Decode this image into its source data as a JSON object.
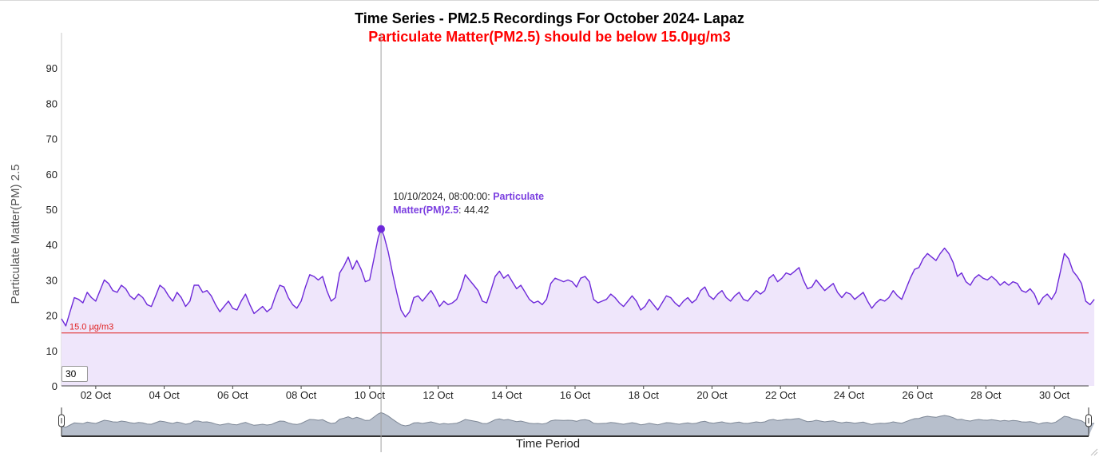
{
  "chart_data": {
    "type": "area",
    "title": "Time Series - PM2.5 Recordings For October 2024- Lapaz",
    "subtitle": "Particulate Matter(PM2.5) should be below 15.0µg/m3",
    "xlabel": "Time Period",
    "ylabel": "Particulate Matter(PM) 2.5",
    "series_name": "Particulate Matter(PM)2.5",
    "x_range": [
      "2024-10-01",
      "2024-10-31"
    ],
    "ylim": [
      0,
      100
    ],
    "yticks": [
      0,
      10,
      20,
      30,
      40,
      50,
      60,
      70,
      80,
      90
    ],
    "xticks": [
      {
        "date": "2024-10-02",
        "label": "02 Oct"
      },
      {
        "date": "2024-10-04",
        "label": "04 Oct"
      },
      {
        "date": "2024-10-06",
        "label": "06 Oct"
      },
      {
        "date": "2024-10-08",
        "label": "08 Oct"
      },
      {
        "date": "2024-10-10",
        "label": "10 Oct"
      },
      {
        "date": "2024-10-12",
        "label": "12 Oct"
      },
      {
        "date": "2024-10-14",
        "label": "14 Oct"
      },
      {
        "date": "2024-10-16",
        "label": "16 Oct"
      },
      {
        "date": "2024-10-18",
        "label": "18 Oct"
      },
      {
        "date": "2024-10-20",
        "label": "20 Oct"
      },
      {
        "date": "2024-10-22",
        "label": "22 Oct"
      },
      {
        "date": "2024-10-24",
        "label": "24 Oct"
      },
      {
        "date": "2024-10-26",
        "label": "26 Oct"
      },
      {
        "date": "2024-10-28",
        "label": "28 Oct"
      },
      {
        "date": "2024-10-30",
        "label": "30 Oct"
      }
    ],
    "threshold": {
      "value": 15.0,
      "label": "15.0 µg/m3",
      "color": "#e02020"
    },
    "line_color": "#6d28d9",
    "fill_color": "#efe6fb",
    "highlight": {
      "x": "2024-10-10 08:00",
      "y": 44.42,
      "timestamp": "10/10/2024, 08:00:00",
      "series_name": "Particulate Matter(PM)2.5",
      "value_text": "44.42"
    },
    "roller_value": "30",
    "points": [
      [
        "2024-10-01 00:00",
        19
      ],
      [
        "2024-10-01 03:00",
        17
      ],
      [
        "2024-10-01 06:00",
        21
      ],
      [
        "2024-10-01 09:00",
        25
      ],
      [
        "2024-10-01 12:00",
        24.5
      ],
      [
        "2024-10-01 15:00",
        23.5
      ],
      [
        "2024-10-01 18:00",
        26.5
      ],
      [
        "2024-10-01 21:00",
        25
      ],
      [
        "2024-10-02 00:00",
        24
      ],
      [
        "2024-10-02 03:00",
        27
      ],
      [
        "2024-10-02 06:00",
        30
      ],
      [
        "2024-10-02 09:00",
        29
      ],
      [
        "2024-10-02 12:00",
        27
      ],
      [
        "2024-10-02 15:00",
        26.5
      ],
      [
        "2024-10-02 18:00",
        28.5
      ],
      [
        "2024-10-02 21:00",
        27.5
      ],
      [
        "2024-10-03 00:00",
        25.5
      ],
      [
        "2024-10-03 03:00",
        24.5
      ],
      [
        "2024-10-03 06:00",
        26
      ],
      [
        "2024-10-03 09:00",
        25
      ],
      [
        "2024-10-03 12:00",
        23
      ],
      [
        "2024-10-03 15:00",
        22.5
      ],
      [
        "2024-10-03 18:00",
        25.5
      ],
      [
        "2024-10-03 21:00",
        28.5
      ],
      [
        "2024-10-04 00:00",
        27.5
      ],
      [
        "2024-10-04 03:00",
        25.5
      ],
      [
        "2024-10-04 06:00",
        24
      ],
      [
        "2024-10-04 09:00",
        26.5
      ],
      [
        "2024-10-04 12:00",
        25
      ],
      [
        "2024-10-04 15:00",
        22.5
      ],
      [
        "2024-10-04 18:00",
        24
      ],
      [
        "2024-10-04 21:00",
        28.5
      ],
      [
        "2024-10-05 00:00",
        28.5
      ],
      [
        "2024-10-05 03:00",
        26.5
      ],
      [
        "2024-10-05 06:00",
        27
      ],
      [
        "2024-10-05 09:00",
        25.5
      ],
      [
        "2024-10-05 12:00",
        23
      ],
      [
        "2024-10-05 15:00",
        21
      ],
      [
        "2024-10-05 18:00",
        22.5
      ],
      [
        "2024-10-05 21:00",
        24
      ],
      [
        "2024-10-06 00:00",
        22
      ],
      [
        "2024-10-06 03:00",
        21.5
      ],
      [
        "2024-10-06 06:00",
        24
      ],
      [
        "2024-10-06 09:00",
        26
      ],
      [
        "2024-10-06 12:00",
        23
      ],
      [
        "2024-10-06 15:00",
        20.5
      ],
      [
        "2024-10-06 18:00",
        21.5
      ],
      [
        "2024-10-06 21:00",
        22.5
      ],
      [
        "2024-10-07 00:00",
        21
      ],
      [
        "2024-10-07 03:00",
        22
      ],
      [
        "2024-10-07 06:00",
        25.5
      ],
      [
        "2024-10-07 09:00",
        28.5
      ],
      [
        "2024-10-07 12:00",
        28
      ],
      [
        "2024-10-07 15:00",
        25
      ],
      [
        "2024-10-07 18:00",
        23
      ],
      [
        "2024-10-07 21:00",
        22
      ],
      [
        "2024-10-08 00:00",
        24
      ],
      [
        "2024-10-08 03:00",
        28
      ],
      [
        "2024-10-08 06:00",
        31.5
      ],
      [
        "2024-10-08 09:00",
        31
      ],
      [
        "2024-10-08 12:00",
        30
      ],
      [
        "2024-10-08 15:00",
        31
      ],
      [
        "2024-10-08 18:00",
        27
      ],
      [
        "2024-10-08 21:00",
        24
      ],
      [
        "2024-10-09 00:00",
        25
      ],
      [
        "2024-10-09 03:00",
        32
      ],
      [
        "2024-10-09 06:00",
        34
      ],
      [
        "2024-10-09 09:00",
        36.5
      ],
      [
        "2024-10-09 12:00",
        33
      ],
      [
        "2024-10-09 15:00",
        35.5
      ],
      [
        "2024-10-09 18:00",
        33
      ],
      [
        "2024-10-09 21:00",
        29.5
      ],
      [
        "2024-10-10 00:00",
        30
      ],
      [
        "2024-10-10 03:00",
        36
      ],
      [
        "2024-10-10 06:00",
        42
      ],
      [
        "2024-10-10 08:00",
        44.42
      ],
      [
        "2024-10-10 10:00",
        42.5
      ],
      [
        "2024-10-10 13:00",
        38
      ],
      [
        "2024-10-10 16:00",
        32
      ],
      [
        "2024-10-10 19:00",
        26.5
      ],
      [
        "2024-10-10 22:00",
        21.5
      ],
      [
        "2024-10-11 01:00",
        19.5
      ],
      [
        "2024-10-11 04:00",
        21
      ],
      [
        "2024-10-11 07:00",
        25
      ],
      [
        "2024-10-11 10:00",
        25.5
      ],
      [
        "2024-10-11 13:00",
        24
      ],
      [
        "2024-10-11 16:00",
        25.5
      ],
      [
        "2024-10-11 19:00",
        27
      ],
      [
        "2024-10-11 22:00",
        25
      ],
      [
        "2024-10-12 01:00",
        22.5
      ],
      [
        "2024-10-12 04:00",
        24
      ],
      [
        "2024-10-12 07:00",
        23
      ],
      [
        "2024-10-12 10:00",
        23.5
      ],
      [
        "2024-10-12 13:00",
        24.5
      ],
      [
        "2024-10-12 16:00",
        27.5
      ],
      [
        "2024-10-12 19:00",
        31.5
      ],
      [
        "2024-10-12 22:00",
        30
      ],
      [
        "2024-10-13 01:00",
        28.5
      ],
      [
        "2024-10-13 04:00",
        27
      ],
      [
        "2024-10-13 07:00",
        24
      ],
      [
        "2024-10-13 10:00",
        23.5
      ],
      [
        "2024-10-13 13:00",
        27
      ],
      [
        "2024-10-13 16:00",
        31
      ],
      [
        "2024-10-13 19:00",
        32.5
      ],
      [
        "2024-10-13 22:00",
        30.5
      ],
      [
        "2024-10-14 01:00",
        31.5
      ],
      [
        "2024-10-14 04:00",
        29.5
      ],
      [
        "2024-10-14 07:00",
        27.5
      ],
      [
        "2024-10-14 10:00",
        28.5
      ],
      [
        "2024-10-14 13:00",
        26.5
      ],
      [
        "2024-10-14 16:00",
        24.5
      ],
      [
        "2024-10-14 19:00",
        23.5
      ],
      [
        "2024-10-14 22:00",
        24
      ],
      [
        "2024-10-15 01:00",
        23
      ],
      [
        "2024-10-15 04:00",
        24.5
      ],
      [
        "2024-10-15 07:00",
        29
      ],
      [
        "2024-10-15 10:00",
        30.5
      ],
      [
        "2024-10-15 13:00",
        30
      ],
      [
        "2024-10-15 16:00",
        29.5
      ],
      [
        "2024-10-15 19:00",
        30
      ],
      [
        "2024-10-15 22:00",
        29.5
      ],
      [
        "2024-10-16 01:00",
        28
      ],
      [
        "2024-10-16 04:00",
        30.5
      ],
      [
        "2024-10-16 07:00",
        31
      ],
      [
        "2024-10-16 10:00",
        29.5
      ],
      [
        "2024-10-16 13:00",
        24.5
      ],
      [
        "2024-10-16 16:00",
        23.5
      ],
      [
        "2024-10-16 19:00",
        24
      ],
      [
        "2024-10-16 22:00",
        24.5
      ],
      [
        "2024-10-17 01:00",
        26
      ],
      [
        "2024-10-17 04:00",
        25
      ],
      [
        "2024-10-17 07:00",
        23.5
      ],
      [
        "2024-10-17 10:00",
        22.5
      ],
      [
        "2024-10-17 13:00",
        24
      ],
      [
        "2024-10-17 16:00",
        25.5
      ],
      [
        "2024-10-17 19:00",
        24
      ],
      [
        "2024-10-17 22:00",
        21.5
      ],
      [
        "2024-10-18 01:00",
        22.5
      ],
      [
        "2024-10-18 04:00",
        24.5
      ],
      [
        "2024-10-18 07:00",
        23
      ],
      [
        "2024-10-18 10:00",
        21.5
      ],
      [
        "2024-10-18 13:00",
        23.5
      ],
      [
        "2024-10-18 16:00",
        25.5
      ],
      [
        "2024-10-18 19:00",
        25
      ],
      [
        "2024-10-18 22:00",
        23.5
      ],
      [
        "2024-10-19 01:00",
        22.5
      ],
      [
        "2024-10-19 04:00",
        24
      ],
      [
        "2024-10-19 07:00",
        25
      ],
      [
        "2024-10-19 10:00",
        23.5
      ],
      [
        "2024-10-19 13:00",
        24.5
      ],
      [
        "2024-10-19 16:00",
        27
      ],
      [
        "2024-10-19 19:00",
        28
      ],
      [
        "2024-10-19 22:00",
        25.5
      ],
      [
        "2024-10-20 01:00",
        24.5
      ],
      [
        "2024-10-20 04:00",
        26
      ],
      [
        "2024-10-20 07:00",
        27
      ],
      [
        "2024-10-20 10:00",
        25
      ],
      [
        "2024-10-20 13:00",
        24
      ],
      [
        "2024-10-20 16:00",
        25.5
      ],
      [
        "2024-10-20 19:00",
        26.5
      ],
      [
        "2024-10-20 22:00",
        24.5
      ],
      [
        "2024-10-21 01:00",
        24
      ],
      [
        "2024-10-21 04:00",
        25.5
      ],
      [
        "2024-10-21 07:00",
        27
      ],
      [
        "2024-10-21 10:00",
        26
      ],
      [
        "2024-10-21 13:00",
        27
      ],
      [
        "2024-10-21 16:00",
        30.5
      ],
      [
        "2024-10-21 19:00",
        31.5
      ],
      [
        "2024-10-21 22:00",
        29.5
      ],
      [
        "2024-10-22 01:00",
        30.5
      ],
      [
        "2024-10-22 04:00",
        32
      ],
      [
        "2024-10-22 07:00",
        31.5
      ],
      [
        "2024-10-22 10:00",
        32.5
      ],
      [
        "2024-10-22 13:00",
        33.5
      ],
      [
        "2024-10-22 16:00",
        30
      ],
      [
        "2024-10-22 19:00",
        27.5
      ],
      [
        "2024-10-22 22:00",
        28
      ],
      [
        "2024-10-23 01:00",
        30
      ],
      [
        "2024-10-23 04:00",
        28.5
      ],
      [
        "2024-10-23 07:00",
        27
      ],
      [
        "2024-10-23 10:00",
        28
      ],
      [
        "2024-10-23 13:00",
        29
      ],
      [
        "2024-10-23 16:00",
        26.5
      ],
      [
        "2024-10-23 19:00",
        25
      ],
      [
        "2024-10-23 22:00",
        26.5
      ],
      [
        "2024-10-24 01:00",
        26
      ],
      [
        "2024-10-24 04:00",
        24.5
      ],
      [
        "2024-10-24 07:00",
        25.5
      ],
      [
        "2024-10-24 10:00",
        26.5
      ],
      [
        "2024-10-24 13:00",
        24
      ],
      [
        "2024-10-24 16:00",
        22
      ],
      [
        "2024-10-24 19:00",
        23.5
      ],
      [
        "2024-10-24 22:00",
        24.5
      ],
      [
        "2024-10-25 01:00",
        24
      ],
      [
        "2024-10-25 04:00",
        25
      ],
      [
        "2024-10-25 07:00",
        27
      ],
      [
        "2024-10-25 10:00",
        25.5
      ],
      [
        "2024-10-25 13:00",
        24.5
      ],
      [
        "2024-10-25 16:00",
        27.5
      ],
      [
        "2024-10-25 19:00",
        30.5
      ],
      [
        "2024-10-25 22:00",
        33
      ],
      [
        "2024-10-26 01:00",
        33.5
      ],
      [
        "2024-10-26 04:00",
        36
      ],
      [
        "2024-10-26 07:00",
        37.5
      ],
      [
        "2024-10-26 10:00",
        36.5
      ],
      [
        "2024-10-26 13:00",
        35.5
      ],
      [
        "2024-10-26 16:00",
        37.5
      ],
      [
        "2024-10-26 19:00",
        39
      ],
      [
        "2024-10-26 22:00",
        37.5
      ],
      [
        "2024-10-27 01:00",
        35
      ],
      [
        "2024-10-27 04:00",
        31
      ],
      [
        "2024-10-27 07:00",
        32
      ],
      [
        "2024-10-27 10:00",
        29.5
      ],
      [
        "2024-10-27 13:00",
        28.5
      ],
      [
        "2024-10-27 16:00",
        30.5
      ],
      [
        "2024-10-27 19:00",
        31.5
      ],
      [
        "2024-10-27 22:00",
        30.5
      ],
      [
        "2024-10-28 01:00",
        30
      ],
      [
        "2024-10-28 04:00",
        31
      ],
      [
        "2024-10-28 07:00",
        30
      ],
      [
        "2024-10-28 10:00",
        28.5
      ],
      [
        "2024-10-28 13:00",
        29.5
      ],
      [
        "2024-10-28 16:00",
        28.5
      ],
      [
        "2024-10-28 19:00",
        29.5
      ],
      [
        "2024-10-28 22:00",
        29
      ],
      [
        "2024-10-29 01:00",
        27
      ],
      [
        "2024-10-29 04:00",
        26.5
      ],
      [
        "2024-10-29 07:00",
        27.5
      ],
      [
        "2024-10-29 10:00",
        26
      ],
      [
        "2024-10-29 13:00",
        23
      ],
      [
        "2024-10-29 16:00",
        25
      ],
      [
        "2024-10-29 19:00",
        26
      ],
      [
        "2024-10-29 22:00",
        24.5
      ],
      [
        "2024-10-30 01:00",
        26.5
      ],
      [
        "2024-10-30 04:00",
        32
      ],
      [
        "2024-10-30 07:00",
        37.5
      ],
      [
        "2024-10-30 10:00",
        36
      ],
      [
        "2024-10-30 13:00",
        32.5
      ],
      [
        "2024-10-30 16:00",
        31
      ],
      [
        "2024-10-30 19:00",
        29
      ],
      [
        "2024-10-30 22:00",
        24
      ],
      [
        "2024-10-31 01:00",
        23
      ],
      [
        "2024-10-31 04:00",
        24.5
      ]
    ]
  }
}
